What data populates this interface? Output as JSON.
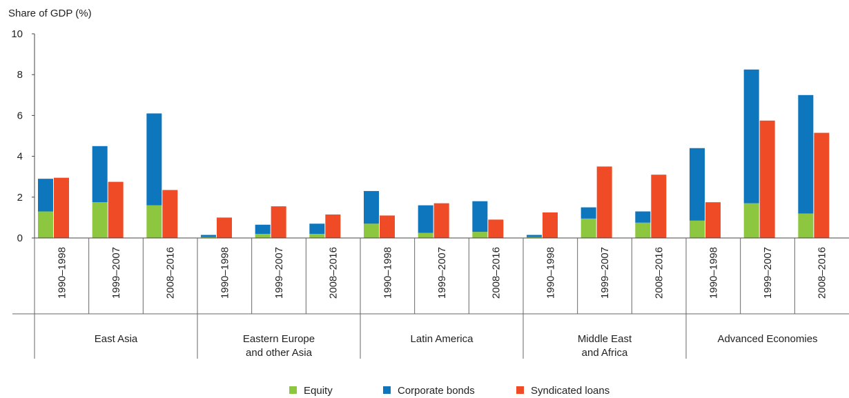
{
  "chart_data": {
    "type": "bar",
    "stacked_series": [
      "Equity",
      "Corporate bonds"
    ],
    "ylabel": "Share of GDP (%)",
    "ylim": [
      0,
      10
    ],
    "yticks": [
      "0",
      "2",
      "4",
      "6",
      "8",
      "10"
    ],
    "grid": false,
    "legend_position": "bottom-center",
    "colors": {
      "Equity": "#8dc63f",
      "Corporate bonds": "#0e76bc",
      "Syndicated loans": "#ef4b26"
    },
    "groups": [
      {
        "region": [
          "East Asia"
        ],
        "periods": [
          "1990–1998",
          "1999–2007",
          "2008–2016"
        ]
      },
      {
        "region": [
          "Eastern Europe",
          "and other Asia"
        ],
        "periods": [
          "1990–1998",
          "1999–2007",
          "2008–2016"
        ]
      },
      {
        "region": [
          "Latin America"
        ],
        "periods": [
          "1990–1998",
          "1999–2007",
          "2008–2016"
        ]
      },
      {
        "region": [
          "Middle East",
          "and Africa"
        ],
        "periods": [
          "1990–1998",
          "1999–2007",
          "2008–2016"
        ]
      },
      {
        "region": [
          "Advanced Economies"
        ],
        "periods": [
          "1990–1998",
          "1999–2007",
          "2008–2016"
        ]
      }
    ],
    "series": [
      {
        "name": "Equity",
        "values": [
          1.3,
          1.75,
          1.6,
          0.05,
          0.2,
          0.2,
          0.7,
          0.25,
          0.3,
          0.05,
          0.95,
          0.75,
          0.85,
          1.7,
          1.2
        ]
      },
      {
        "name": "Corporate bonds",
        "values": [
          1.6,
          2.75,
          4.5,
          0.1,
          0.45,
          0.5,
          1.6,
          1.35,
          1.5,
          0.1,
          0.55,
          0.55,
          3.55,
          6.55,
          5.8
        ]
      },
      {
        "name": "Syndicated loans",
        "values": [
          2.95,
          2.75,
          2.35,
          1.0,
          1.55,
          1.15,
          1.1,
          1.7,
          0.9,
          1.25,
          3.5,
          3.1,
          1.75,
          5.75,
          5.15
        ]
      }
    ]
  }
}
